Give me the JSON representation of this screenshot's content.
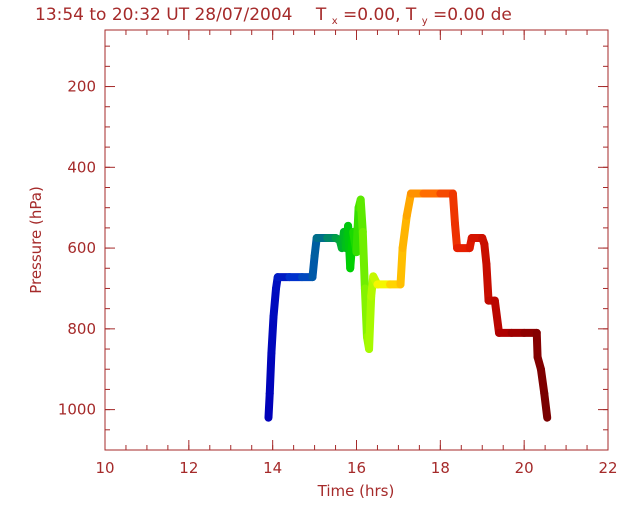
{
  "colors": {
    "axis": "#a52a2a",
    "background": "#ffffff"
  },
  "chart_data": {
    "type": "line",
    "title_parts": {
      "time_range": "13:54 to 20:32 UT 28/07/2004",
      "tx_symbol": "T",
      "tx_sub": "x",
      "tx_value": "=0.00, ",
      "ty_symbol": "T",
      "ty_sub": "y",
      "ty_value": "=0.00",
      "trailing": " de"
    },
    "xlabel": "Time  (hrs)",
    "ylabel": "Pressure  (hPa)",
    "xlim": [
      10,
      22
    ],
    "ylim": [
      1100,
      60
    ],
    "y_inverted": true,
    "x_ticks": [
      {
        "value": 10,
        "label": "10"
      },
      {
        "value": 12,
        "label": "12"
      },
      {
        "value": 14,
        "label": "14"
      },
      {
        "value": 16,
        "label": "16"
      },
      {
        "value": 18,
        "label": "18"
      },
      {
        "value": 20,
        "label": "20"
      },
      {
        "value": 22,
        "label": "22"
      }
    ],
    "y_ticks": [
      {
        "value": 200,
        "label": "200"
      },
      {
        "value": 400,
        "label": "400"
      },
      {
        "value": 600,
        "label": "600"
      },
      {
        "value": 800,
        "label": "800"
      },
      {
        "value": 1000,
        "label": "1000"
      }
    ],
    "x_minor_step": 0.5,
    "y_minor_step": 50,
    "grid": false,
    "color_by": "time (rainbow)",
    "series": [
      {
        "points": [
          [
            13.9,
            1020
          ],
          [
            13.93,
            960
          ],
          [
            13.97,
            860
          ],
          [
            14.02,
            770
          ],
          [
            14.08,
            700
          ],
          [
            14.12,
            672
          ],
          [
            14.4,
            672
          ],
          [
            14.7,
            672
          ],
          [
            14.95,
            672
          ],
          [
            15.0,
            620
          ],
          [
            15.05,
            575
          ],
          [
            15.3,
            575
          ],
          [
            15.5,
            575
          ],
          [
            15.6,
            580
          ],
          [
            15.65,
            600
          ],
          [
            15.7,
            560
          ],
          [
            15.75,
            600
          ],
          [
            15.8,
            545
          ],
          [
            15.85,
            650
          ],
          [
            15.92,
            560
          ],
          [
            16.0,
            610
          ],
          [
            16.05,
            500
          ],
          [
            16.1,
            480
          ],
          [
            16.15,
            560
          ],
          [
            16.2,
            700
          ],
          [
            16.25,
            820
          ],
          [
            16.3,
            850
          ],
          [
            16.35,
            720
          ],
          [
            16.4,
            670
          ],
          [
            16.5,
            690
          ],
          [
            16.8,
            690
          ],
          [
            17.05,
            690
          ],
          [
            17.1,
            600
          ],
          [
            17.2,
            520
          ],
          [
            17.3,
            465
          ],
          [
            17.6,
            465
          ],
          [
            18.0,
            465
          ],
          [
            18.3,
            465
          ],
          [
            18.35,
            540
          ],
          [
            18.4,
            600
          ],
          [
            18.7,
            600
          ],
          [
            18.75,
            575
          ],
          [
            19.0,
            575
          ],
          [
            19.05,
            590
          ],
          [
            19.1,
            640
          ],
          [
            19.15,
            730
          ],
          [
            19.3,
            730
          ],
          [
            19.4,
            810
          ],
          [
            19.7,
            810
          ],
          [
            20.0,
            810
          ],
          [
            20.3,
            810
          ],
          [
            20.32,
            870
          ],
          [
            20.4,
            900
          ],
          [
            20.48,
            960
          ],
          [
            20.55,
            1020
          ]
        ]
      }
    ]
  }
}
